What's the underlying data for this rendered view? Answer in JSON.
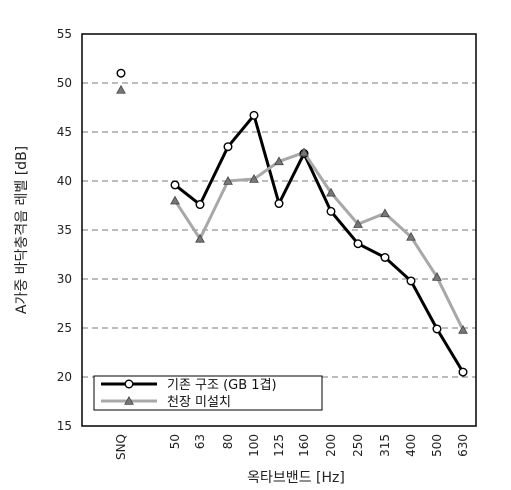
{
  "chart_data": {
    "type": "line",
    "categories": [
      "SNQ",
      "50",
      "63",
      "80",
      "100",
      "125",
      "160",
      "200",
      "250",
      "315",
      "400",
      "500",
      "630"
    ],
    "series": [
      {
        "name": "기존 구조 (GB 1겹)",
        "values": [
          51.0,
          39.6,
          37.6,
          43.5,
          46.7,
          37.7,
          42.8,
          36.9,
          33.6,
          32.2,
          29.8,
          24.9,
          20.5
        ],
        "color": "#000000",
        "marker": "circle"
      },
      {
        "name": "천장 미설치",
        "values": [
          49.3,
          38.0,
          34.1,
          40.0,
          40.2,
          42.0,
          42.9,
          38.8,
          35.6,
          36.7,
          34.3,
          30.2,
          24.8
        ],
        "color": "#a8a8a8",
        "marker": "triangle"
      }
    ],
    "xlabel": "옥타브밴드 [Hz]",
    "ylabel": "A가중 바닥충격음 레벨 [dB]",
    "ylim": [
      15,
      55
    ],
    "yticks": [
      15,
      20,
      25,
      30,
      35,
      40,
      45,
      50,
      55
    ],
    "grid": "horizontal dashed",
    "legend_position": "bottom-left",
    "first_point_disconnected": true
  }
}
